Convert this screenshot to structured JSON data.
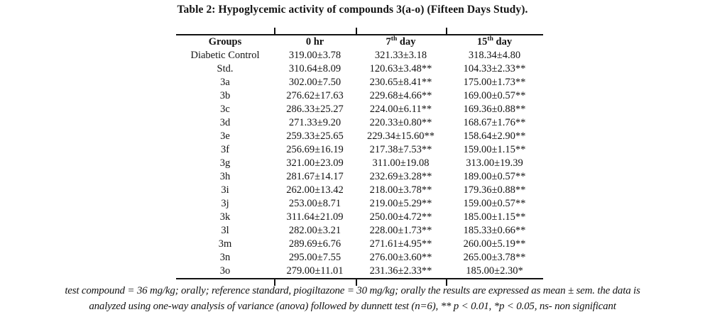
{
  "title": "Table 2: Hypoglycemic activity of compounds 3(a-o) (Fifteen Days Study).",
  "table": {
    "headers": [
      {
        "text": "Groups"
      },
      {
        "text": "0 hr"
      },
      {
        "num": "7",
        "sup": "th",
        "rest": " day"
      },
      {
        "num": "15",
        "sup": "th",
        "rest": " day"
      }
    ],
    "rows": [
      [
        "Diabetic Control",
        "319.00±3.78",
        "321.33±3.18",
        "318.34±4.80"
      ],
      [
        "Std.",
        "310.64±8.09",
        "120.63±3.48**",
        "104.33±2.33**"
      ],
      [
        "3a",
        "302.00±7.50",
        "230.65±8.41**",
        "175.00±1.73**"
      ],
      [
        "3b",
        "276.62±17.63",
        "229.68±4.66**",
        "169.00±0.57**"
      ],
      [
        "3c",
        "286.33±25.27",
        "224.00±6.11**",
        "169.36±0.88**"
      ],
      [
        "3d",
        "271.33±9.20",
        "220.33±0.80**",
        "168.67±1.76**"
      ],
      [
        "3e",
        "259.33±25.65",
        "229.34±15.60**",
        "158.64±2.90**"
      ],
      [
        "3f",
        "256.69±16.19",
        "217.38±7.53**",
        "159.00±1.15**"
      ],
      [
        "3g",
        "321.00±23.09",
        "311.00±19.08",
        "313.00±19.39"
      ],
      [
        "3h",
        "281.67±14.17",
        "232.69±3.28**",
        "189.00±0.57**"
      ],
      [
        "3i",
        "262.00±13.42",
        "218.00±3.78**",
        "179.36±0.88**"
      ],
      [
        "3j",
        "253.00±8.71",
        "219.00±5.29**",
        "159.00±0.57**"
      ],
      [
        "3k",
        "311.64±21.09",
        "250.00±4.72**",
        "185.00±1.15**"
      ],
      [
        "3l",
        "282.00±3.21",
        "228.00±1.73**",
        "185.33±0.66**"
      ],
      [
        "3m",
        "289.69±6.76",
        "271.61±4.95**",
        "260.00±5.19**"
      ],
      [
        "3n",
        "295.00±7.55",
        "276.00±3.60**",
        "265.00±3.78**"
      ],
      [
        "3o",
        "279.00±11.01",
        "231.36±2.33**",
        "185.00±2.30*"
      ]
    ]
  },
  "footnote": {
    "line1": "test compound = 36 mg/kg; orally; reference standard, piogiltazone  = 30 mg/kg; orally the results are expressed as mean ± sem. the data is",
    "line2": "analyzed using one-way analysis of variance (anova) followed by dunnett test (n=6), ** p < 0.01, *p < 0.05, ns- non significant"
  },
  "colors": {
    "text": "#131313",
    "rule": "#111111",
    "background": "#ffffff"
  }
}
